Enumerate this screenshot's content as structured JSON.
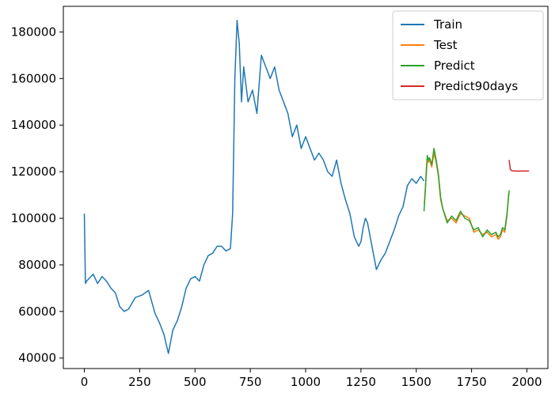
{
  "chart_data": {
    "type": "line",
    "title": "",
    "xlabel": "",
    "ylabel": "",
    "xlim": [
      -95,
      2095
    ],
    "ylim": [
      35500,
      191000
    ],
    "x_ticks": [
      0,
      250,
      500,
      750,
      1000,
      1250,
      1500,
      1750,
      2000
    ],
    "y_ticks": [
      40000,
      60000,
      80000,
      100000,
      120000,
      140000,
      160000,
      180000
    ],
    "legend_position": "top-right",
    "series": [
      {
        "name": "Train",
        "color": "#1f77b4",
        "x": [
          0,
          5,
          10,
          20,
          40,
          60,
          80,
          100,
          120,
          140,
          160,
          180,
          200,
          230,
          260,
          290,
          320,
          340,
          360,
          370,
          380,
          390,
          400,
          420,
          440,
          460,
          480,
          500,
          520,
          540,
          560,
          580,
          600,
          620,
          640,
          660,
          670,
          675,
          680,
          690,
          700,
          710,
          720,
          740,
          760,
          780,
          800,
          820,
          840,
          860,
          880,
          900,
          920,
          940,
          960,
          980,
          1000,
          1020,
          1040,
          1060,
          1080,
          1100,
          1120,
          1140,
          1160,
          1180,
          1200,
          1220,
          1240,
          1250,
          1260,
          1270,
          1280,
          1300,
          1320,
          1340,
          1360,
          1380,
          1400,
          1420,
          1440,
          1460,
          1480,
          1500,
          1520,
          1535
        ],
        "y": [
          102000,
          72000,
          73000,
          74000,
          76000,
          72000,
          75000,
          73000,
          70000,
          68000,
          62000,
          60000,
          61000,
          66000,
          67000,
          69000,
          59000,
          55000,
          50000,
          46000,
          42000,
          47000,
          52000,
          56000,
          62000,
          70000,
          74000,
          75000,
          73000,
          80000,
          84000,
          85000,
          88000,
          88000,
          86000,
          87000,
          102000,
          130000,
          160000,
          185000,
          175000,
          150000,
          165000,
          150000,
          155000,
          145000,
          170000,
          165000,
          160000,
          165000,
          155000,
          150000,
          145000,
          135000,
          140000,
          130000,
          135000,
          130000,
          125000,
          128000,
          125000,
          120000,
          118000,
          125000,
          115000,
          108000,
          102000,
          92000,
          88000,
          90000,
          96000,
          100000,
          98000,
          88000,
          78000,
          82000,
          85000,
          90000,
          95000,
          101000,
          105000,
          114000,
          117000,
          115000,
          118000,
          116000
        ]
      },
      {
        "name": "Test",
        "color": "#ff7f0e",
        "x": [
          1536,
          1545,
          1550,
          1555,
          1560,
          1570,
          1580,
          1590,
          1600,
          1610,
          1620,
          1640,
          1660,
          1680,
          1700,
          1720,
          1740,
          1760,
          1780,
          1800,
          1820,
          1840,
          1860,
          1870,
          1880,
          1890,
          1900,
          1910,
          1918
        ],
        "y": [
          106000,
          118000,
          126000,
          124000,
          125000,
          122000,
          128000,
          124000,
          118000,
          108000,
          104000,
          99000,
          100000,
          98000,
          102000,
          101000,
          100000,
          94000,
          95000,
          93000,
          94000,
          92000,
          93000,
          91000,
          92000,
          95000,
          94000,
          101000,
          111000
        ]
      },
      {
        "name": "Predict",
        "color": "#2ca02c",
        "x": [
          1535,
          1540,
          1545,
          1550,
          1555,
          1560,
          1570,
          1580,
          1590,
          1600,
          1610,
          1620,
          1640,
          1660,
          1680,
          1700,
          1720,
          1740,
          1760,
          1780,
          1800,
          1820,
          1840,
          1860,
          1870,
          1880,
          1890,
          1900,
          1910,
          1920
        ],
        "y": [
          103000,
          110000,
          120000,
          127000,
          125000,
          126000,
          123000,
          130000,
          125000,
          119000,
          109000,
          104000,
          98000,
          101000,
          99000,
          103000,
          100000,
          99000,
          95000,
          96000,
          92000,
          95000,
          93000,
          94000,
          92000,
          93000,
          96000,
          95000,
          102000,
          112000
        ]
      },
      {
        "name": "Predict90days",
        "color": "#d62728",
        "x": [
          1920,
          1925,
          1930,
          1940,
          1960,
          1980,
          2000,
          2010
        ],
        "y": [
          125000,
          121000,
          120500,
          120300,
          120300,
          120300,
          120300,
          120300
        ]
      }
    ]
  }
}
